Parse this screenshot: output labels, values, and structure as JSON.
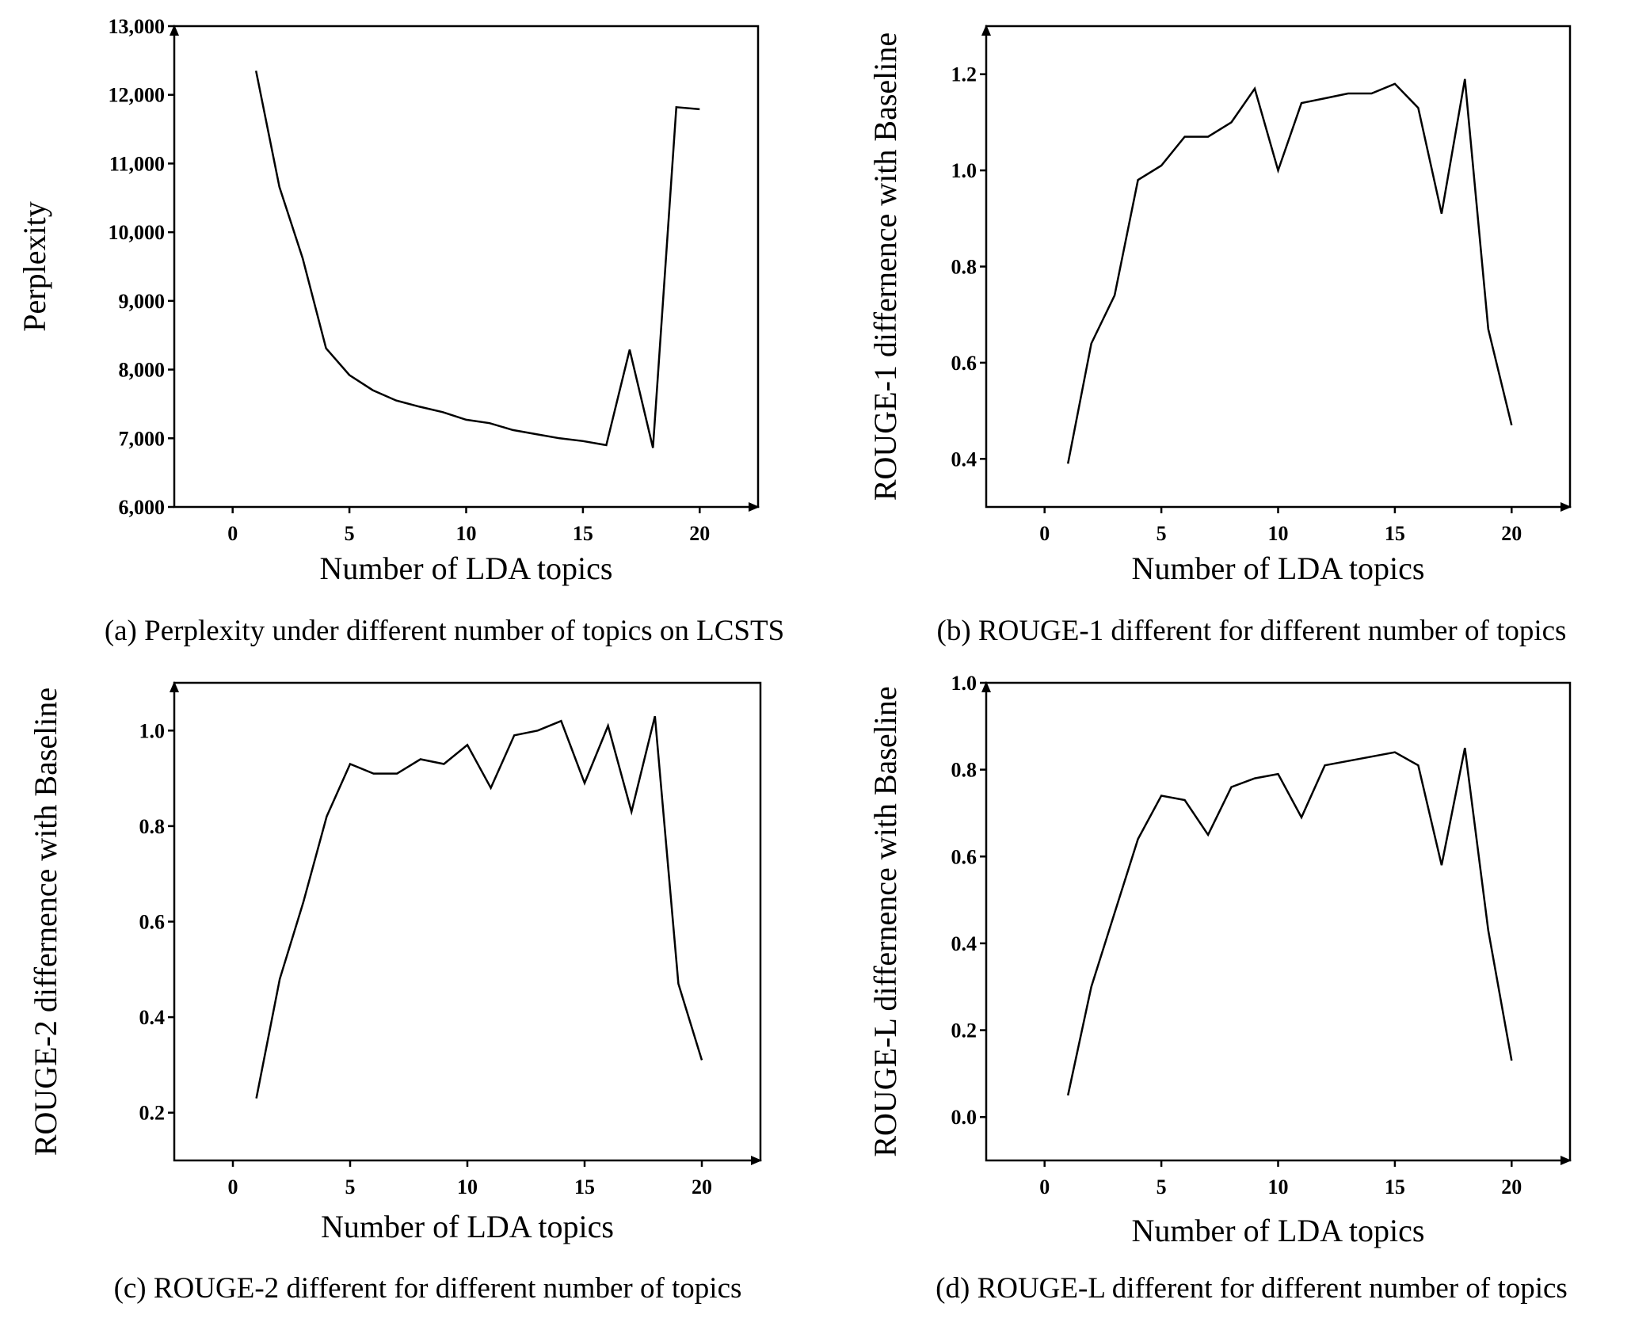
{
  "colors": {
    "line": "#000000",
    "background": "#ffffff"
  },
  "chart_data": [
    {
      "type": "line",
      "caption": "(a) Perplexity under different number of topics on LCSTS",
      "xlabel": "Number of LDA topics",
      "ylabel": "Perplexity",
      "xlim": [
        -2.5,
        22.5
      ],
      "ylim": [
        6000,
        13000
      ],
      "xticks": [
        0,
        5,
        10,
        15,
        20
      ],
      "xtick_labels": [
        "0",
        "5",
        "10",
        "15",
        "20"
      ],
      "yticks": [
        6000,
        7000,
        8000,
        9000,
        10000,
        11000,
        12000,
        13000
      ],
      "ytick_labels": [
        "6,000",
        "7,000",
        "8,000",
        "9,000",
        "10,000",
        "11,000",
        "12,000",
        "13,000"
      ],
      "x": [
        1,
        2,
        3,
        4,
        5,
        6,
        7,
        8,
        9,
        10,
        11,
        12,
        13,
        14,
        15,
        16,
        17,
        18,
        19,
        20
      ],
      "y": [
        12350,
        10660,
        9620,
        8310,
        7920,
        7700,
        7550,
        7460,
        7380,
        7270,
        7220,
        7120,
        7060,
        7000,
        6960,
        6900,
        8290,
        6860,
        11820,
        11790
      ]
    },
    {
      "type": "line",
      "caption": "(b) ROUGE-1 different for different number of  topics",
      "xlabel": "Number of LDA topics",
      "ylabel": "ROUGE-1 differnence with Baseline",
      "xlim": [
        -2.5,
        22.5
      ],
      "ylim": [
        0.3,
        1.3
      ],
      "xticks": [
        0,
        5,
        10,
        15,
        20
      ],
      "xtick_labels": [
        "0",
        "5",
        "10",
        "15",
        "20"
      ],
      "yticks": [
        0.4,
        0.6,
        0.8,
        1.0,
        1.2
      ],
      "ytick_labels": [
        "0.4",
        "0.6",
        "0.8",
        "1.0",
        "1.2"
      ],
      "x": [
        1,
        2,
        3,
        4,
        5,
        6,
        7,
        8,
        9,
        10,
        11,
        12,
        13,
        14,
        15,
        16,
        17,
        18,
        19,
        20
      ],
      "y": [
        0.39,
        0.64,
        0.74,
        0.98,
        1.01,
        1.07,
        1.07,
        1.1,
        1.17,
        1.0,
        1.14,
        1.15,
        1.16,
        1.16,
        1.18,
        1.13,
        0.91,
        1.19,
        0.67,
        0.47
      ]
    },
    {
      "type": "line",
      "caption": "(c) ROUGE-2 different for different number of  topics",
      "xlabel": "Number of LDA topics",
      "ylabel": "ROUGE-2 differnence with Baseline",
      "xlim": [
        -2.5,
        22.5
      ],
      "ylim": [
        0.1,
        1.1
      ],
      "xticks": [
        0,
        5,
        10,
        15,
        20
      ],
      "xtick_labels": [
        "0",
        "5",
        "10",
        "15",
        "20"
      ],
      "yticks": [
        0.2,
        0.4,
        0.6,
        0.8,
        1.0
      ],
      "ytick_labels": [
        "0.2",
        "0.4",
        "0.6",
        "0.8",
        "1.0"
      ],
      "x": [
        1,
        2,
        3,
        4,
        5,
        6,
        7,
        8,
        9,
        10,
        11,
        12,
        13,
        14,
        15,
        16,
        17,
        18,
        19,
        20
      ],
      "y": [
        0.23,
        0.48,
        0.64,
        0.82,
        0.93,
        0.91,
        0.91,
        0.94,
        0.93,
        0.97,
        0.88,
        0.99,
        1.0,
        1.02,
        0.89,
        1.01,
        0.83,
        1.03,
        0.47,
        0.31
      ]
    },
    {
      "type": "line",
      "caption": "(d) ROUGE-L different for different number of  topics",
      "xlabel": "Number of LDA topics",
      "ylabel": "ROUGE-L differnence with Baseline",
      "xlim": [
        -2.5,
        22.5
      ],
      "ylim": [
        -0.1,
        1.0
      ],
      "xticks": [
        0,
        5,
        10,
        15,
        20
      ],
      "xtick_labels": [
        "0",
        "5",
        "10",
        "15",
        "20"
      ],
      "yticks": [
        0.0,
        0.2,
        0.4,
        0.6,
        0.8,
        1.0
      ],
      "ytick_labels": [
        "0.0",
        "0.2",
        "0.4",
        "0.6",
        "0.8",
        "1.0"
      ],
      "x": [
        1,
        2,
        3,
        4,
        5,
        6,
        7,
        8,
        9,
        10,
        11,
        12,
        13,
        14,
        15,
        16,
        17,
        18,
        19,
        20
      ],
      "y": [
        0.05,
        0.3,
        0.47,
        0.64,
        0.74,
        0.73,
        0.65,
        0.76,
        0.78,
        0.79,
        0.69,
        0.81,
        0.82,
        0.83,
        0.84,
        0.81,
        0.58,
        0.85,
        0.43,
        0.13
      ]
    }
  ]
}
